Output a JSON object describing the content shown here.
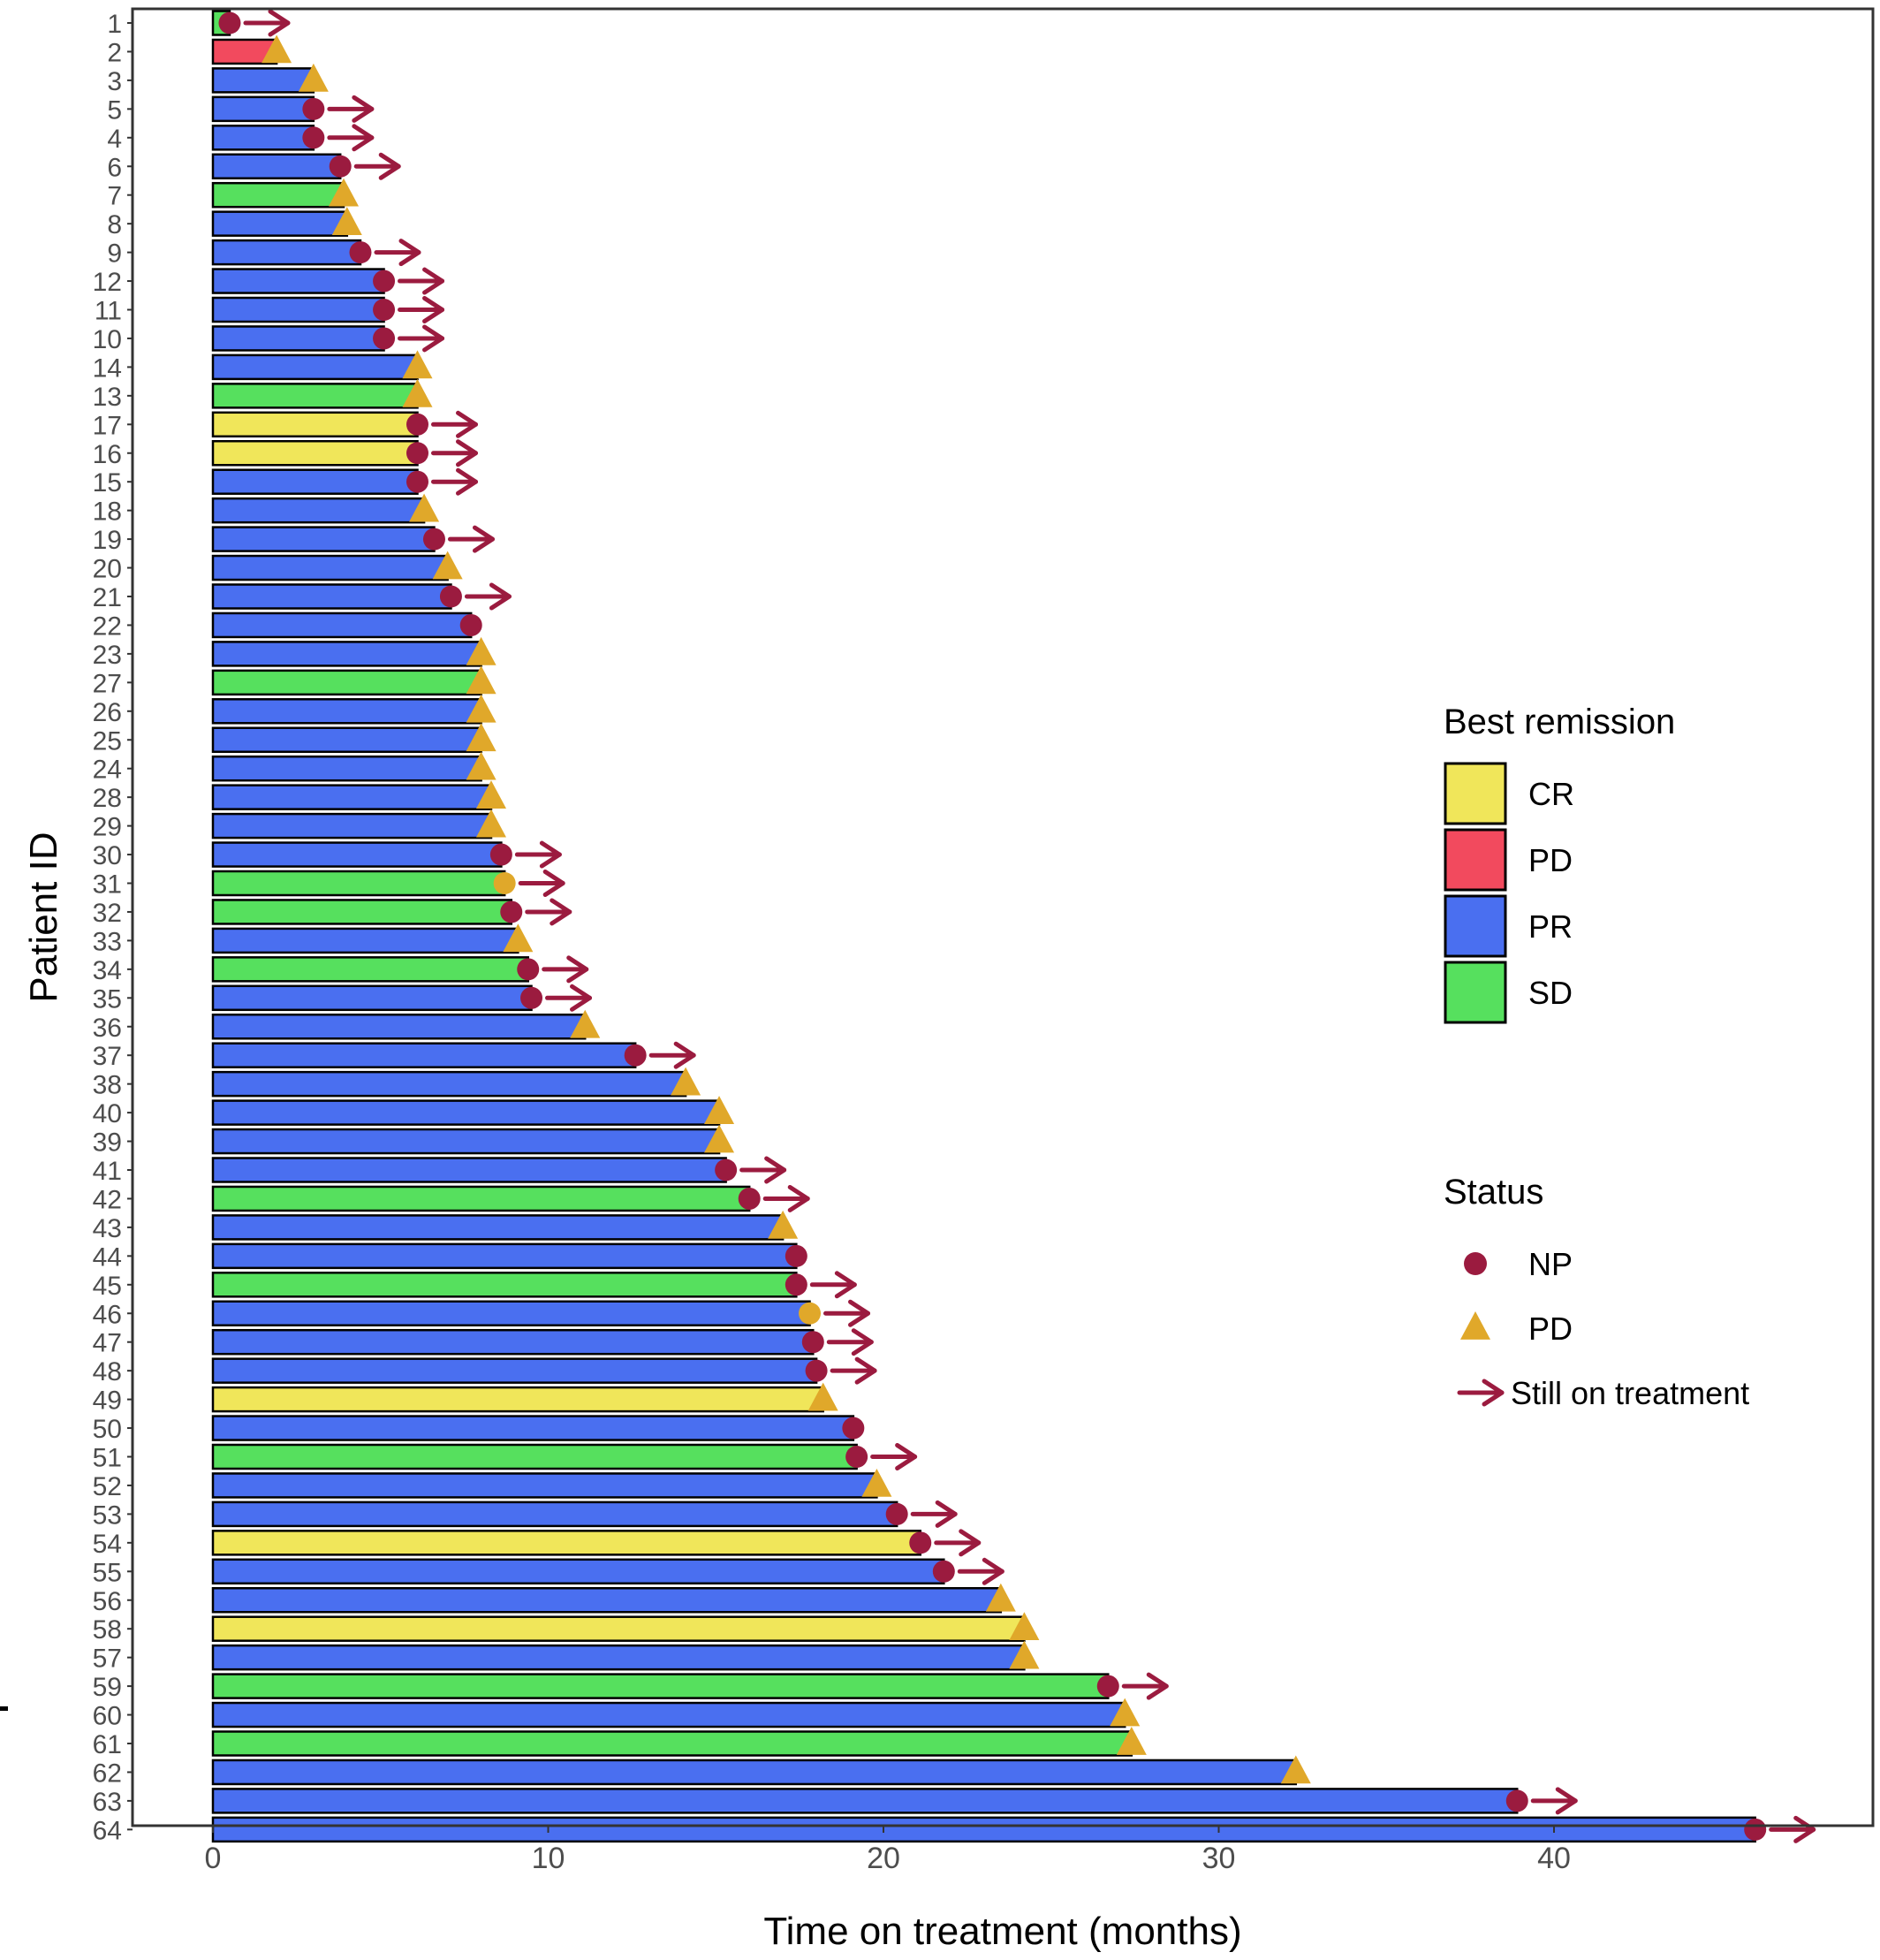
{
  "chart_data": {
    "type": "bar",
    "orientation": "horizontal",
    "xlabel": "Time on treatment (months)",
    "ylabel": "Patient ID",
    "xlim": [
      -1.2,
      47.5
    ],
    "x_ticks": [
      "0",
      "10",
      "20",
      "30",
      "40"
    ],
    "grid": false,
    "legend_placement": "right",
    "colors": {
      "CR": "#f0e65a",
      "PD": "#f24a5e",
      "PR": "#4a6ff0",
      "SD": "#56e05e",
      "NP": "#9b1b3f",
      "PD_status": "#e0a82a",
      "still_on_treatment": "#9b1b3f",
      "bar_edge": "#000000"
    },
    "legend": {
      "remission_title": "Best remission",
      "remission_items": [
        {
          "key": "CR",
          "label": "CR"
        },
        {
          "key": "PD",
          "label": "PD"
        },
        {
          "key": "PR",
          "label": "PR"
        },
        {
          "key": "SD",
          "label": "SD"
        }
      ],
      "status_title": "Status",
      "status_items": [
        {
          "key": "NP",
          "label": "NP",
          "shape": "circle"
        },
        {
          "key": "PD_status",
          "label": "PD",
          "shape": "triangle"
        },
        {
          "key": "still_on_treatment",
          "label": "Still on treatment",
          "shape": "arrow"
        }
      ]
    },
    "patients": [
      {
        "id": "1",
        "months": 0.5,
        "remission": "SD",
        "status": "NP",
        "marker_color": "NP",
        "ongoing": true
      },
      {
        "id": "2",
        "months": 1.9,
        "remission": "PD",
        "status": "PD",
        "ongoing": false
      },
      {
        "id": "3",
        "months": 3.0,
        "remission": "PR",
        "status": "PD",
        "ongoing": false
      },
      {
        "id": "5",
        "months": 3.0,
        "remission": "PR",
        "status": "NP",
        "marker_color": "NP",
        "ongoing": true
      },
      {
        "id": "4",
        "months": 3.0,
        "remission": "PR",
        "status": "NP",
        "marker_color": "NP",
        "ongoing": true
      },
      {
        "id": "6",
        "months": 3.8,
        "remission": "PR",
        "status": "NP",
        "marker_color": "NP",
        "ongoing": true
      },
      {
        "id": "7",
        "months": 3.9,
        "remission": "SD",
        "status": "PD",
        "ongoing": false
      },
      {
        "id": "8",
        "months": 4.0,
        "remission": "PR",
        "status": "PD",
        "ongoing": false
      },
      {
        "id": "9",
        "months": 4.4,
        "remission": "PR",
        "status": "NP",
        "marker_color": "NP",
        "ongoing": true
      },
      {
        "id": "12",
        "months": 5.1,
        "remission": "PR",
        "status": "NP",
        "marker_color": "NP",
        "ongoing": true
      },
      {
        "id": "11",
        "months": 5.1,
        "remission": "PR",
        "status": "NP",
        "marker_color": "NP",
        "ongoing": true
      },
      {
        "id": "10",
        "months": 5.1,
        "remission": "PR",
        "status": "NP",
        "marker_color": "NP",
        "ongoing": true
      },
      {
        "id": "14",
        "months": 6.1,
        "remission": "PR",
        "status": "PD",
        "ongoing": false
      },
      {
        "id": "13",
        "months": 6.1,
        "remission": "SD",
        "status": "PD",
        "ongoing": false
      },
      {
        "id": "17",
        "months": 6.1,
        "remission": "CR",
        "status": "NP",
        "marker_color": "NP",
        "ongoing": true
      },
      {
        "id": "16",
        "months": 6.1,
        "remission": "CR",
        "status": "NP",
        "marker_color": "NP",
        "ongoing": true
      },
      {
        "id": "15",
        "months": 6.1,
        "remission": "PR",
        "status": "NP",
        "marker_color": "NP",
        "ongoing": true
      },
      {
        "id": "18",
        "months": 6.3,
        "remission": "PR",
        "status": "PD",
        "ongoing": false
      },
      {
        "id": "19",
        "months": 6.6,
        "remission": "PR",
        "status": "NP",
        "marker_color": "NP",
        "ongoing": true
      },
      {
        "id": "20",
        "months": 7.0,
        "remission": "PR",
        "status": "PD",
        "ongoing": false
      },
      {
        "id": "21",
        "months": 7.1,
        "remission": "PR",
        "status": "NP",
        "marker_color": "NP",
        "ongoing": true
      },
      {
        "id": "22",
        "months": 7.7,
        "remission": "PR",
        "status": "NP",
        "marker_color": "NP",
        "ongoing": false
      },
      {
        "id": "23",
        "months": 8.0,
        "remission": "PR",
        "status": "PD",
        "ongoing": false
      },
      {
        "id": "27",
        "months": 8.0,
        "remission": "SD",
        "status": "PD",
        "ongoing": false
      },
      {
        "id": "26",
        "months": 8.0,
        "remission": "PR",
        "status": "PD",
        "ongoing": false
      },
      {
        "id": "25",
        "months": 8.0,
        "remission": "PR",
        "status": "PD",
        "ongoing": false
      },
      {
        "id": "24",
        "months": 8.0,
        "remission": "PR",
        "status": "PD",
        "ongoing": false
      },
      {
        "id": "28",
        "months": 8.3,
        "remission": "PR",
        "status": "PD",
        "ongoing": false
      },
      {
        "id": "29",
        "months": 8.3,
        "remission": "PR",
        "status": "PD",
        "ongoing": false
      },
      {
        "id": "30",
        "months": 8.6,
        "remission": "PR",
        "status": "NP",
        "marker_color": "NP",
        "ongoing": true
      },
      {
        "id": "31",
        "months": 8.7,
        "remission": "SD",
        "status": "NP",
        "marker_color": "PD_status",
        "ongoing": true
      },
      {
        "id": "32",
        "months": 8.9,
        "remission": "SD",
        "status": "NP",
        "marker_color": "NP",
        "ongoing": true
      },
      {
        "id": "33",
        "months": 9.1,
        "remission": "PR",
        "status": "PD",
        "ongoing": false
      },
      {
        "id": "34",
        "months": 9.4,
        "remission": "SD",
        "status": "NP",
        "marker_color": "NP",
        "ongoing": true
      },
      {
        "id": "35",
        "months": 9.5,
        "remission": "PR",
        "status": "NP",
        "marker_color": "NP",
        "ongoing": true
      },
      {
        "id": "36",
        "months": 11.1,
        "remission": "PR",
        "status": "PD",
        "ongoing": false
      },
      {
        "id": "37",
        "months": 12.6,
        "remission": "PR",
        "status": "NP",
        "marker_color": "NP",
        "ongoing": true
      },
      {
        "id": "38",
        "months": 14.1,
        "remission": "PR",
        "status": "PD",
        "ongoing": false
      },
      {
        "id": "40",
        "months": 15.1,
        "remission": "PR",
        "status": "PD",
        "ongoing": false
      },
      {
        "id": "39",
        "months": 15.1,
        "remission": "PR",
        "status": "PD",
        "ongoing": false
      },
      {
        "id": "41",
        "months": 15.3,
        "remission": "PR",
        "status": "NP",
        "marker_color": "NP",
        "ongoing": true
      },
      {
        "id": "42",
        "months": 16.0,
        "remission": "SD",
        "status": "NP",
        "marker_color": "NP",
        "ongoing": true
      },
      {
        "id": "43",
        "months": 17.0,
        "remission": "PR",
        "status": "PD",
        "ongoing": false
      },
      {
        "id": "44",
        "months": 17.4,
        "remission": "PR",
        "status": "NP",
        "marker_color": "NP",
        "ongoing": false
      },
      {
        "id": "45",
        "months": 17.4,
        "remission": "SD",
        "status": "NP",
        "marker_color": "NP",
        "ongoing": true
      },
      {
        "id": "46",
        "months": 17.8,
        "remission": "PR",
        "status": "NP",
        "marker_color": "PD_status",
        "ongoing": true
      },
      {
        "id": "47",
        "months": 17.9,
        "remission": "PR",
        "status": "NP",
        "marker_color": "NP",
        "ongoing": true
      },
      {
        "id": "48",
        "months": 18.0,
        "remission": "PR",
        "status": "NP",
        "marker_color": "NP",
        "ongoing": true
      },
      {
        "id": "49",
        "months": 18.2,
        "remission": "CR",
        "status": "PD",
        "ongoing": false
      },
      {
        "id": "50",
        "months": 19.1,
        "remission": "PR",
        "status": "NP",
        "marker_color": "NP",
        "ongoing": false
      },
      {
        "id": "51",
        "months": 19.2,
        "remission": "SD",
        "status": "NP",
        "marker_color": "NP",
        "ongoing": true
      },
      {
        "id": "52",
        "months": 19.8,
        "remission": "PR",
        "status": "PD",
        "ongoing": false
      },
      {
        "id": "53",
        "months": 20.4,
        "remission": "PR",
        "status": "NP",
        "marker_color": "NP",
        "ongoing": true
      },
      {
        "id": "54",
        "months": 21.1,
        "remission": "CR",
        "status": "NP",
        "marker_color": "NP",
        "ongoing": true
      },
      {
        "id": "55",
        "months": 21.8,
        "remission": "PR",
        "status": "NP",
        "marker_color": "NP",
        "ongoing": true
      },
      {
        "id": "56",
        "months": 23.5,
        "remission": "PR",
        "status": "PD",
        "ongoing": false
      },
      {
        "id": "58",
        "months": 24.2,
        "remission": "CR",
        "status": "PD",
        "ongoing": false
      },
      {
        "id": "57",
        "months": 24.2,
        "remission": "PR",
        "status": "PD",
        "ongoing": false
      },
      {
        "id": "59",
        "months": 26.7,
        "remission": "SD",
        "status": "NP",
        "marker_color": "NP",
        "ongoing": true
      },
      {
        "id": "60",
        "months": 27.2,
        "remission": "PR",
        "status": "PD",
        "ongoing": false
      },
      {
        "id": "61",
        "months": 27.4,
        "remission": "SD",
        "status": "PD",
        "ongoing": false
      },
      {
        "id": "62",
        "months": 32.3,
        "remission": "PR",
        "status": "PD",
        "ongoing": false
      },
      {
        "id": "63",
        "months": 38.9,
        "remission": "PR",
        "status": "NP",
        "marker_color": "NP",
        "ongoing": true
      },
      {
        "id": "64",
        "months": 46.0,
        "remission": "PR",
        "status": "NP",
        "marker_color": "NP",
        "ongoing": true
      }
    ]
  }
}
